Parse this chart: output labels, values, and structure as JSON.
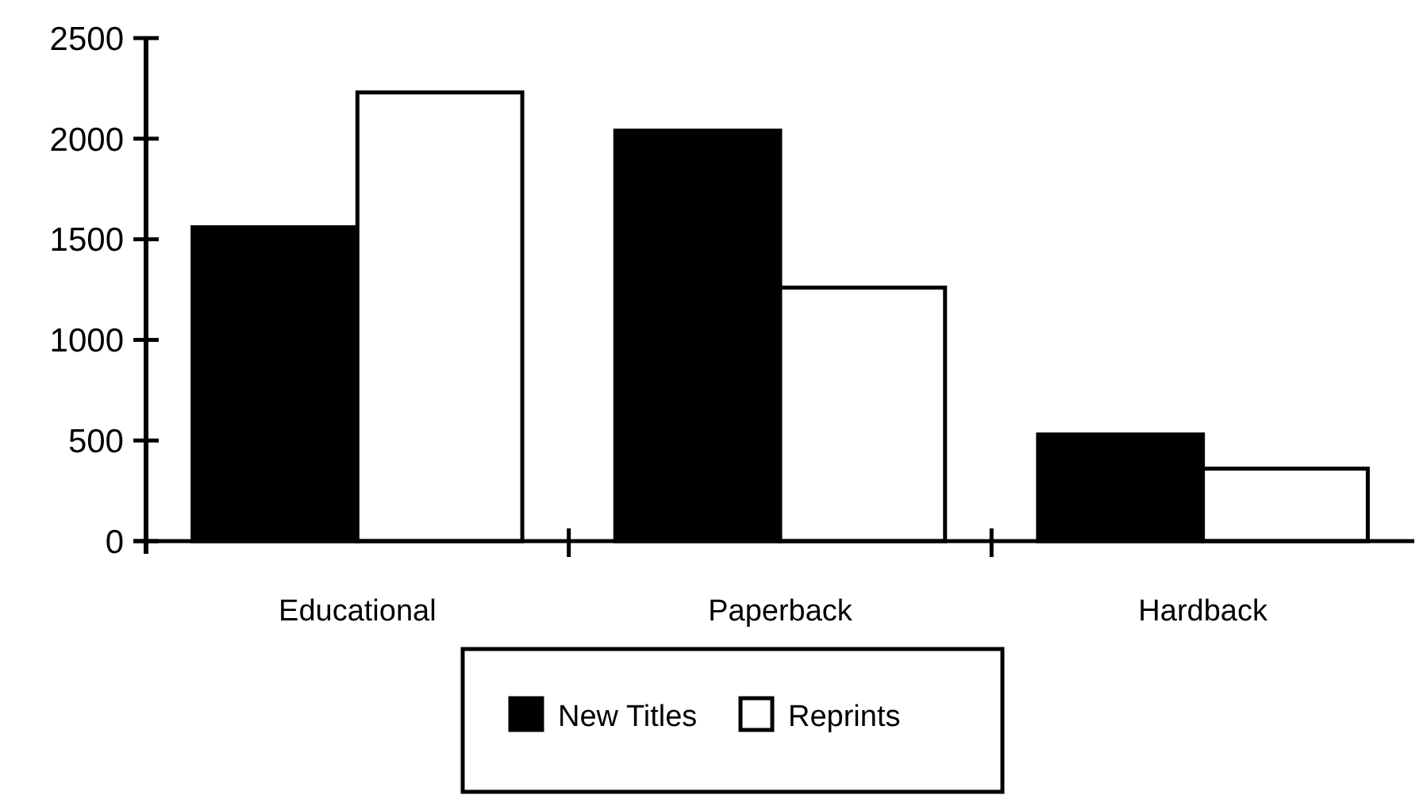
{
  "chart_data": {
    "type": "bar",
    "categories": [
      "Educational",
      "Paperback",
      "Hardback"
    ],
    "series": [
      {
        "name": "New Titles",
        "color": "#000000",
        "values": [
          1560,
          2040,
          530
        ]
      },
      {
        "name": "Reprints",
        "color": "#ffffff",
        "values": [
          2230,
          1260,
          360
        ]
      }
    ],
    "ylim": [
      0,
      2500
    ],
    "yticks": [
      0,
      500,
      1000,
      1500,
      2000,
      2500
    ],
    "grid": false,
    "legend": "bottom"
  }
}
